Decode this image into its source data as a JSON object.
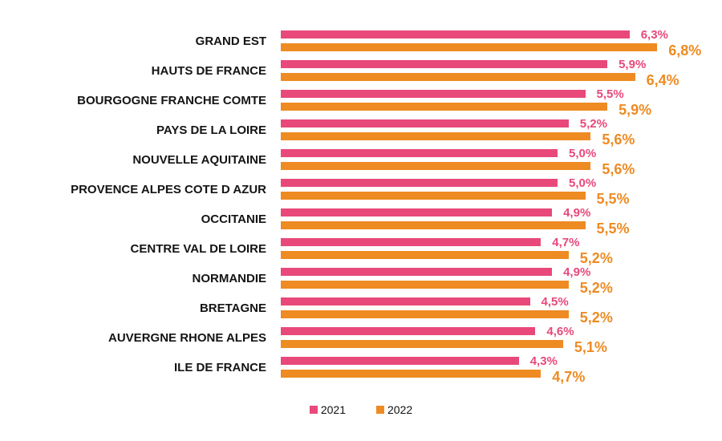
{
  "chart_data": {
    "type": "bar",
    "orientation": "horizontal",
    "title": "",
    "xlabel": "",
    "ylabel": "",
    "xlim": [
      0,
      6.8
    ],
    "grid": false,
    "legend_position": "bottom-center",
    "value_format": "comma-decimal percent",
    "categories": [
      "GRAND EST",
      "HAUTS DE FRANCE",
      "BOURGOGNE FRANCHE COMTE",
      "PAYS DE LA LOIRE",
      "NOUVELLE AQUITAINE",
      "PROVENCE ALPES COTE D AZUR",
      "OCCITANIE",
      "CENTRE VAL DE LOIRE",
      "NORMANDIE",
      "BRETAGNE",
      "AUVERGNE RHONE ALPES",
      "ILE DE FRANCE"
    ],
    "series": [
      {
        "name": "2021",
        "color": "#E8497A",
        "values": [
          6.3,
          5.9,
          5.5,
          5.2,
          5.0,
          5.0,
          4.9,
          4.7,
          4.9,
          4.5,
          4.6,
          4.3
        ],
        "labels": [
          "6,3%",
          "5,9%",
          "5,5%",
          "5,2%",
          "5,0%",
          "5,0%",
          "4,9%",
          "4,7%",
          "4,9%",
          "4,5%",
          "4,6%",
          "4,3%"
        ]
      },
      {
        "name": "2022",
        "color": "#EE8B23",
        "values": [
          6.8,
          6.4,
          5.9,
          5.6,
          5.6,
          5.5,
          5.5,
          5.2,
          5.2,
          5.2,
          5.1,
          4.7
        ],
        "labels": [
          "6,8%",
          "6,4%",
          "5,9%",
          "5,6%",
          "5,6%",
          "5,5%",
          "5,5%",
          "5,2%",
          "5,2%",
          "5,2%",
          "5,1%",
          "4,7%"
        ]
      }
    ]
  }
}
